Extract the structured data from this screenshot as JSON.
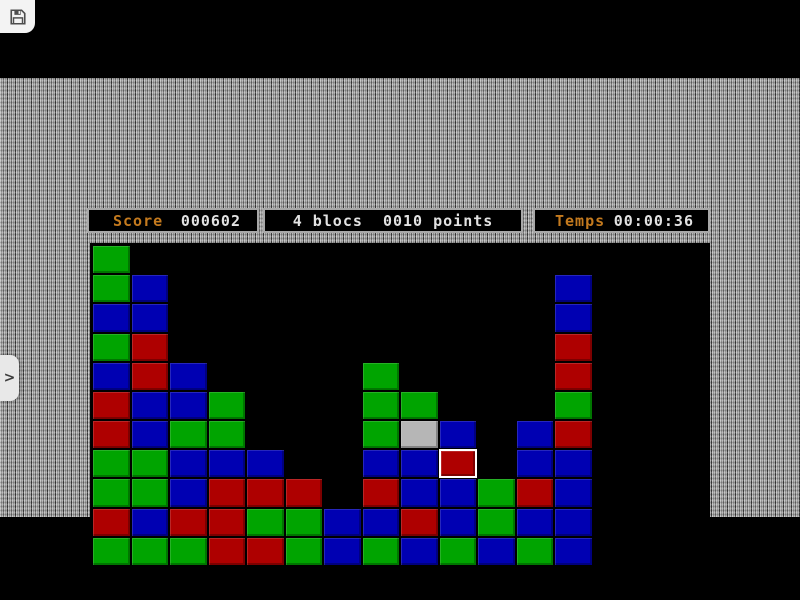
{
  "panels": {
    "score": {
      "label": "Score",
      "value": "000602"
    },
    "selection": {
      "text": "4 blocs  0010 points"
    },
    "time": {
      "label": "Temps",
      "value": "00:00:36"
    }
  },
  "toolbar": {
    "save_icon": "floppy-disk"
  },
  "drawer": {
    "chevron_glyph": ">"
  },
  "theme": {
    "label_color": "#c47a1e",
    "value_color": "#e2e2e2",
    "panel_bg": "#000000",
    "panel_border": "#a8a8a8"
  },
  "board": {
    "rows": 11,
    "cols": 16,
    "palette": {
      "G": "#00a400",
      "B": "#0000b2",
      "R": "#ae0000",
      "S": "#b6b6b6"
    },
    "legend": {
      "G": "green",
      "B": "blue",
      "R": "red",
      "S": "gray",
      ".": "empty"
    },
    "grid": [
      "G...............",
      "GB..........B...",
      "BB..........B...",
      "GR..........R...",
      "BRB....G....R...",
      "RBBG...GG...G...",
      "RBGG...GSB.BR...",
      "GGBBB..BBR.BB...",
      "GGBRRR.RBBGRB...",
      "RBRRGGBBRBGBB...",
      "GGGRRGBGBGBGB..."
    ],
    "selected_cell": {
      "row": 7,
      "col": 9
    }
  }
}
